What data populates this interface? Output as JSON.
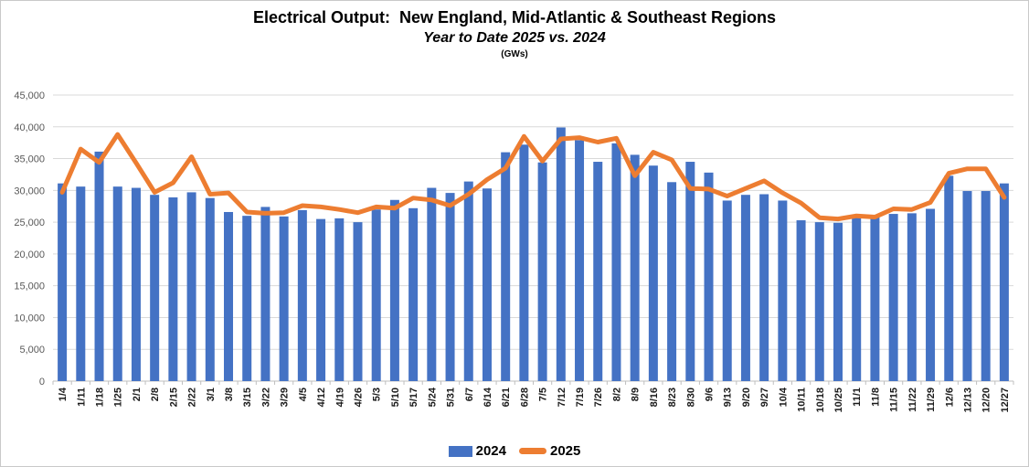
{
  "window": {
    "background": "#FFFFFF",
    "border_color": "#C9C9C9"
  },
  "header": {
    "title": "Electrical Output:  New England, Mid-Atlantic & Southeast Regions",
    "subtitle": "Year to Date 2025 vs. 2024",
    "units": "(GWs)"
  },
  "legend": {
    "entries": [
      {
        "label": "2024",
        "color": "#4472C4",
        "type": "bar"
      },
      {
        "label": "2025",
        "color": "#ED7D31",
        "type": "line"
      }
    ]
  },
  "chart_data": {
    "type": "bar+line",
    "title": "Electrical Output: New England, Mid-Atlantic & Southeast Regions",
    "subtitle": "Year to Date 2025 vs. 2024",
    "ylabel": "GWs",
    "ylim": [
      0,
      45000
    ],
    "y_tick_step": 5000,
    "y_tick_labels": [
      "0",
      "5,000",
      "10,000",
      "15,000",
      "20,000",
      "25,000",
      "30,000",
      "35,000",
      "40,000",
      "45,000"
    ],
    "grid": "horizontal",
    "legend_position": "bottom",
    "x_labels_rotation": -90,
    "categories": [
      "1/4",
      "1/11",
      "1/18",
      "1/25",
      "2/1",
      "2/8",
      "2/15",
      "2/22",
      "3/1",
      "3/8",
      "3/15",
      "3/22",
      "3/29",
      "4/5",
      "4/12",
      "4/19",
      "4/26",
      "5/3",
      "5/10",
      "5/17",
      "5/24",
      "5/31",
      "6/7",
      "6/14",
      "6/21",
      "6/28",
      "7/5",
      "7/12",
      "7/19",
      "7/26",
      "8/2",
      "8/9",
      "8/16",
      "8/23",
      "8/30",
      "9/6",
      "9/13",
      "9/20",
      "9/27",
      "10/4",
      "10/11",
      "10/18",
      "10/25",
      "11/1",
      "11/8",
      "11/15",
      "11/22",
      "11/29",
      "12/6",
      "12/13",
      "12/20",
      "12/27"
    ],
    "series": [
      {
        "name": "2024",
        "type": "bar",
        "color": "#4472C4",
        "values": [
          31100,
          30600,
          36100,
          30600,
          30400,
          29300,
          28900,
          29700,
          28800,
          26600,
          26000,
          27400,
          25900,
          26900,
          25500,
          25600,
          25000,
          27000,
          28500,
          27200,
          30400,
          29600,
          31400,
          30300,
          36000,
          37200,
          34400,
          39900,
          37900,
          34500,
          37400,
          35600,
          33900,
          31300,
          34500,
          32800,
          28400,
          29300,
          29400,
          28400,
          25300,
          25000,
          24900,
          26000,
          25800,
          26300,
          26400,
          27100,
          32300,
          29900,
          29900,
          31100
        ]
      },
      {
        "name": "2025",
        "type": "line",
        "color": "#ED7D31",
        "values": [
          29700,
          36500,
          34400,
          38800,
          34300,
          29700,
          31200,
          35300,
          29400,
          29600,
          26600,
          26400,
          26500,
          27600,
          27400,
          27000,
          26500,
          27400,
          27200,
          28800,
          28500,
          27600,
          29400,
          31700,
          33500,
          38500,
          34600,
          38100,
          38300,
          37600,
          38200,
          32300,
          36000,
          34800,
          30300,
          30200,
          29100,
          30300,
          31500,
          29600,
          28000,
          25700,
          25500,
          26000,
          25800,
          27100,
          27000,
          28100,
          32700,
          33400,
          33400,
          28900
        ]
      }
    ],
    "colors": {
      "grid": "#D9D9D9",
      "axis": "#BFBFBF",
      "y_tick_text": "#595959",
      "x_tick_text": "#1A1A1A"
    }
  }
}
